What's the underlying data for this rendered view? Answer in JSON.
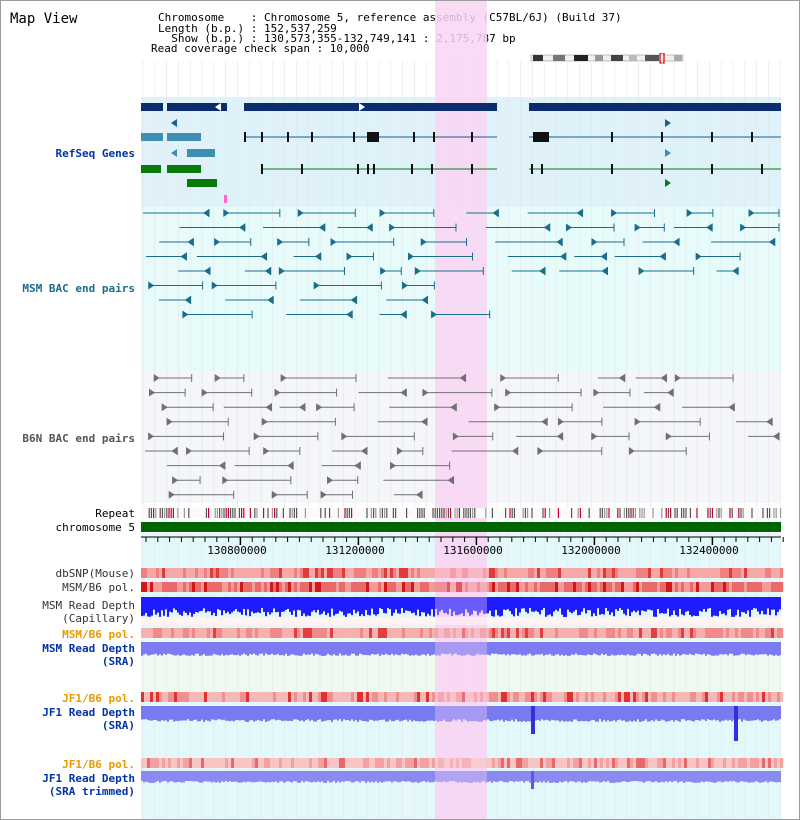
{
  "map_title": "Map View",
  "header": {
    "chromosome": "Chromosome    : Chromosome 5, reference assembly (C57BL/6J) (Build 37)",
    "length": "Length (b.p.) : 152,537,259",
    "show": "  Show (b.p.) : 130,573,355-132,749,141 : 2,175,787 bp",
    "coverage": "Read coverage check span : 10,000"
  },
  "tracks": {
    "refseq": "RefSeq Genes",
    "msm_bac": "MSM BAC end pairs",
    "b6n_bac": "B6N BAC end pairs",
    "repeat": "Repeat",
    "chromosome": "chromosome 5",
    "dbsnp": "dbSNP(Mouse)",
    "msm_b6_pol_1": "MSM/B6 pol.",
    "msm_depth_cap": "MSM Read Depth",
    "msm_depth_cap_sub": "(Capillary)",
    "msm_b6_pol_2": "MSM/B6 pol.",
    "msm_depth_sra": "MSM Read Depth",
    "msm_depth_sra_sub": "(SRA)",
    "jf1_b6_pol_1": "JF1/B6 pol.",
    "jf1_depth_sra": "JF1 Read Depth",
    "jf1_depth_sra_sub": "(SRA)",
    "jf1_b6_pol_2": "JF1/B6 pol.",
    "jf1_depth_trim": "JF1 Read Depth",
    "jf1_depth_trim_sub": "(SRA trimmed)"
  },
  "ruler": {
    "ticks": [
      "130800000",
      "131200000",
      "131600000",
      "132000000",
      "132400000"
    ]
  },
  "colors": {
    "refseq_bg": "#dff2fa",
    "msm_bg": "#e8fbfb",
    "b6n_bg": "#f4f6f9",
    "highlight": "#f9d5f3",
    "msm_line": "#1a6e8c",
    "b6n_line": "#707070",
    "chromosome": "#006400",
    "refseq_dark": "#0c2d6b",
    "label_blue": "#0033aa",
    "label_orange": "#e89a00"
  }
}
